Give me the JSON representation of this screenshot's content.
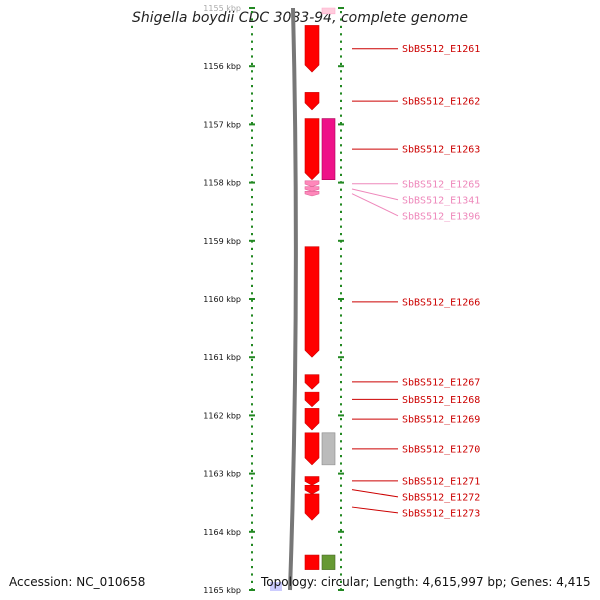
{
  "header": {
    "title": "Shigella boydii CDC 3083-94, complete genome"
  },
  "footer": {
    "accession": "Accession: NC_010658",
    "topology": "Topology: circular; Length: 4,615,997 bp; Genes: 4,415"
  },
  "axis": {
    "unit": "kbp",
    "start_kbp": 1155,
    "end_kbp": 1165,
    "ticks": [
      {
        "kbp": 1155,
        "label": "1155 kbp",
        "faded": true
      },
      {
        "kbp": 1156,
        "label": "1156 kbp"
      },
      {
        "kbp": 1157,
        "label": "1157 kbp"
      },
      {
        "kbp": 1158,
        "label": "1158 kbp"
      },
      {
        "kbp": 1159,
        "label": "1159 kbp"
      },
      {
        "kbp": 1160,
        "label": "1160 kbp"
      },
      {
        "kbp": 1161,
        "label": "1161 kbp"
      },
      {
        "kbp": 1162,
        "label": "1162 kbp"
      },
      {
        "kbp": 1163,
        "label": "1163 kbp"
      },
      {
        "kbp": 1164,
        "label": "1164 kbp"
      },
      {
        "kbp": 1165,
        "label": "1165 kbp"
      }
    ]
  },
  "colors": {
    "gene": "#ff0000",
    "gene_dark": "#cc0000",
    "gene_light": "#ff88bb",
    "pseudo": "#ee1188",
    "grey_feature": "#bbbbbb",
    "green_feature": "#669933",
    "tick_green": "#228822",
    "label_red": "#cc0000",
    "label_pink": "#ee88bb"
  },
  "genes": [
    {
      "name": "SbBS512_E1261",
      "start": 1155.3,
      "end": 1156.1,
      "lane": 0,
      "strand": "-",
      "color": "red",
      "label": true
    },
    {
      "name": "SbBS512_E1262",
      "start": 1156.45,
      "end": 1156.75,
      "lane": 0,
      "strand": "-",
      "color": "red",
      "label": true
    },
    {
      "name": "SbBS512_E1263",
      "start": 1156.9,
      "end": 1157.95,
      "lane": 0,
      "strand": "-",
      "color": "red",
      "label": true
    },
    {
      "name": "SbBS512_E1265",
      "start": 1157.97,
      "end": 1158.07,
      "lane": 0,
      "strand": "-",
      "color": "pink",
      "label": true
    },
    {
      "name": "SbBS512_E1341",
      "start": 1158.07,
      "end": 1158.15,
      "lane": 0,
      "strand": "-",
      "color": "pink",
      "label": true
    },
    {
      "name": "SbBS512_E1396",
      "start": 1158.15,
      "end": 1158.23,
      "lane": 0,
      "strand": "-",
      "color": "pink",
      "label": true
    },
    {
      "name": "SbBS512_E1266",
      "start": 1159.1,
      "end": 1161.0,
      "lane": 0,
      "strand": "-",
      "color": "red",
      "label": true
    },
    {
      "name": "SbBS512_E1267",
      "start": 1161.3,
      "end": 1161.55,
      "lane": 0,
      "strand": "-",
      "color": "red",
      "label": true
    },
    {
      "name": "SbBS512_E1268",
      "start": 1161.6,
      "end": 1161.85,
      "lane": 0,
      "strand": "-",
      "color": "red",
      "label": true
    },
    {
      "name": "SbBS512_E1269",
      "start": 1161.88,
      "end": 1162.25,
      "lane": 0,
      "strand": "-",
      "color": "red",
      "label": true
    },
    {
      "name": "SbBS512_E1270",
      "start": 1162.3,
      "end": 1162.85,
      "lane": 0,
      "strand": "-",
      "color": "red",
      "label": true
    },
    {
      "name": "SbBS512_E1271",
      "start": 1163.05,
      "end": 1163.2,
      "lane": 0,
      "strand": "-",
      "color": "red",
      "label": true
    },
    {
      "name": "SbBS512_E1272",
      "start": 1163.2,
      "end": 1163.35,
      "lane": 0,
      "strand": "-",
      "color": "red",
      "label": true
    },
    {
      "name": "SbBS512_E1273",
      "start": 1163.35,
      "end": 1163.8,
      "lane": 0,
      "strand": "-",
      "color": "red",
      "label": true
    },
    {
      "name": "",
      "start": 1156.9,
      "end": 1157.95,
      "lane": 1,
      "strand": "none",
      "color": "magenta",
      "label": false
    },
    {
      "name": "",
      "start": 1162.3,
      "end": 1162.85,
      "lane": 1,
      "strand": "none",
      "color": "grey",
      "label": false
    },
    {
      "name": "",
      "start": 1155.0,
      "end": 1155.1,
      "lane": 1,
      "strand": "none",
      "color": "lightpink",
      "label": false
    },
    {
      "name": "",
      "start": 1164.4,
      "end": 1164.65,
      "lane": 0,
      "strand": "none",
      "color": "red",
      "label": false
    },
    {
      "name": "",
      "start": 1164.4,
      "end": 1164.65,
      "lane": 1,
      "strand": "none",
      "color": "green",
      "label": false
    }
  ]
}
